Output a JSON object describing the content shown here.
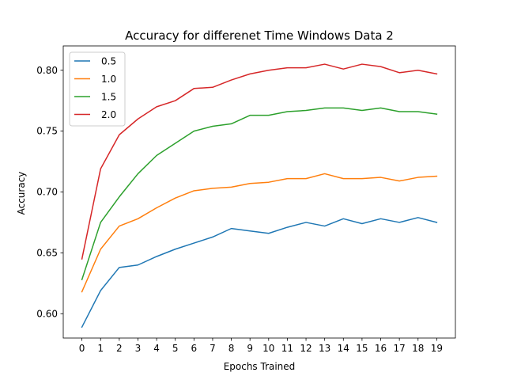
{
  "chart_data": {
    "type": "line",
    "title": "Accuracy for differenet Time Windows Data 2",
    "xlabel": "Epochs Trained",
    "ylabel": "Accuracy",
    "xlim": [
      -1,
      20
    ],
    "ylim": [
      0.58,
      0.82
    ],
    "x": [
      0,
      1,
      2,
      3,
      4,
      5,
      6,
      7,
      8,
      9,
      10,
      11,
      12,
      13,
      14,
      15,
      16,
      17,
      18,
      19
    ],
    "xticks": [
      "0",
      "1",
      "2",
      "3",
      "4",
      "5",
      "6",
      "7",
      "8",
      "9",
      "10",
      "11",
      "12",
      "13",
      "14",
      "15",
      "16",
      "17",
      "18",
      "19"
    ],
    "yticks": [
      0.6,
      0.65,
      0.7,
      0.75,
      0.8
    ],
    "ytick_labels": [
      "0.60",
      "0.65",
      "0.70",
      "0.75",
      "0.80"
    ],
    "grid": false,
    "legend_position": "top-left",
    "series": [
      {
        "name": "0.5",
        "color": "#1f77b4",
        "values": [
          0.589,
          0.619,
          0.638,
          0.64,
          0.647,
          0.653,
          0.658,
          0.663,
          0.67,
          0.668,
          0.666,
          0.671,
          0.675,
          0.672,
          0.678,
          0.674,
          0.678,
          0.675,
          0.679,
          0.675
        ]
      },
      {
        "name": "1.0",
        "color": "#ff7f0e",
        "values": [
          0.618,
          0.653,
          0.672,
          0.678,
          0.687,
          0.695,
          0.701,
          0.703,
          0.704,
          0.707,
          0.708,
          0.711,
          0.711,
          0.715,
          0.711,
          0.711,
          0.712,
          0.709,
          0.712,
          0.713
        ]
      },
      {
        "name": "1.5",
        "color": "#2ca02c",
        "values": [
          0.628,
          0.675,
          0.696,
          0.715,
          0.73,
          0.74,
          0.75,
          0.754,
          0.756,
          0.763,
          0.763,
          0.766,
          0.767,
          0.769,
          0.769,
          0.767,
          0.769,
          0.766,
          0.766,
          0.764
        ]
      },
      {
        "name": "2.0",
        "color": "#d62728",
        "values": [
          0.645,
          0.719,
          0.747,
          0.76,
          0.77,
          0.775,
          0.785,
          0.786,
          0.792,
          0.797,
          0.8,
          0.802,
          0.802,
          0.805,
          0.801,
          0.805,
          0.803,
          0.798,
          0.8,
          0.797
        ]
      }
    ]
  }
}
